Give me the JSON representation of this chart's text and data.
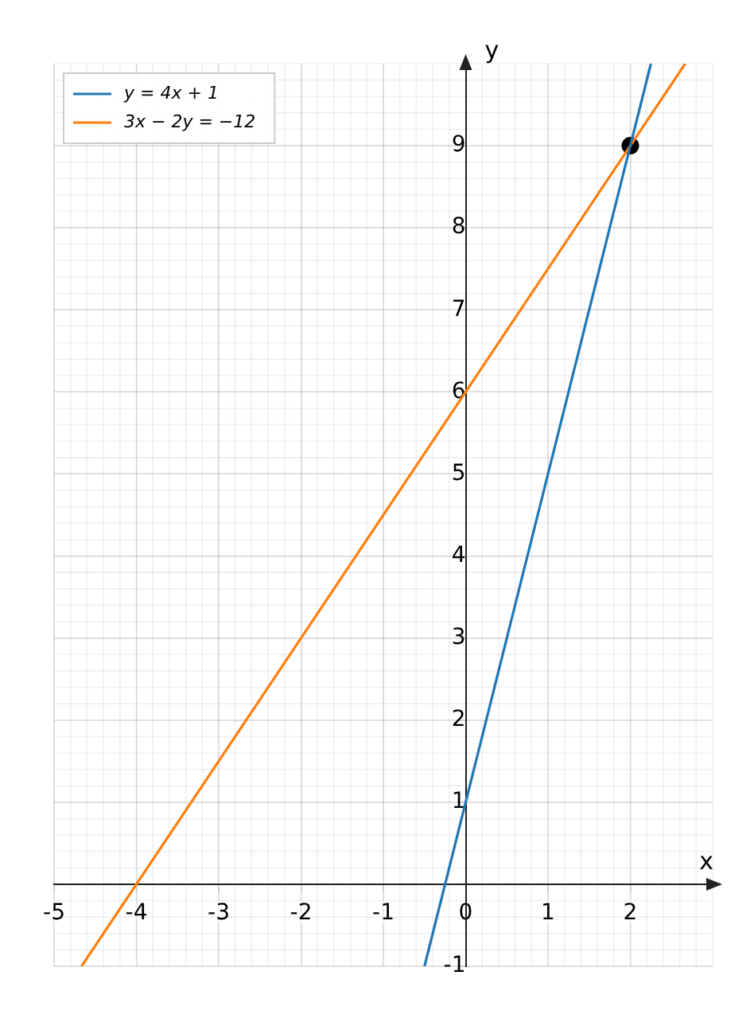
{
  "chart_data": {
    "type": "line",
    "xlabel": "x",
    "ylabel": "y",
    "xlim": [
      -5,
      3
    ],
    "ylim": [
      -1,
      10
    ],
    "xticks": [
      -5,
      -4,
      -3,
      -2,
      -1,
      0,
      1,
      2
    ],
    "yticks": [
      -1,
      1,
      2,
      3,
      4,
      5,
      6,
      7,
      8,
      9
    ],
    "grid": true,
    "legend": "top left",
    "series": [
      {
        "name": "y = 4x + 1",
        "color": "#1f77b4",
        "type": "line",
        "x": [
          -0.5,
          2.25
        ],
        "values": [
          -1,
          10
        ]
      },
      {
        "name": "3x − 2y = −12",
        "color": "#ff7f0e",
        "type": "line",
        "x": [
          -4.6667,
          2.6667
        ],
        "values": [
          -1,
          10
        ]
      },
      {
        "color": "#000000",
        "type": "scatter",
        "marker": "circle",
        "x": [
          2
        ],
        "values": [
          9
        ]
      }
    ]
  }
}
